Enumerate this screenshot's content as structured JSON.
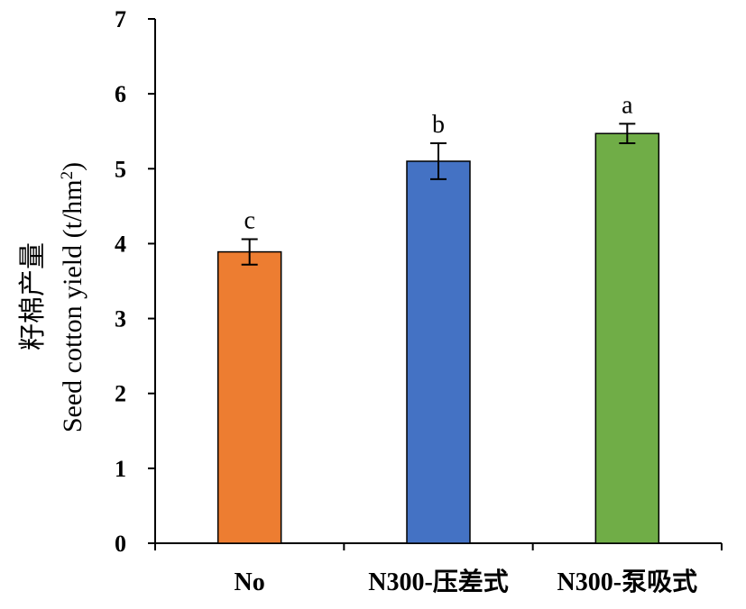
{
  "chart_data": {
    "type": "bar",
    "categories": [
      "No",
      "N300-压差式",
      "N300-泵吸式"
    ],
    "values": [
      3.89,
      5.1,
      5.47
    ],
    "error": [
      0.17,
      0.24,
      0.13
    ],
    "significance": [
      "c",
      "b",
      "a"
    ],
    "colors": [
      "#ed7d31",
      "#4472c4",
      "#70ad47"
    ],
    "ylabel_cn": "籽棉产量",
    "ylabel_en": "Seed cotton yield (t/hm",
    "ylabel_sup": "2",
    "ylabel_close": ")",
    "ylim": [
      0,
      7
    ],
    "yticks": [
      0,
      1,
      2,
      3,
      4,
      5,
      6,
      7
    ],
    "grid": false,
    "legend": "none"
  }
}
